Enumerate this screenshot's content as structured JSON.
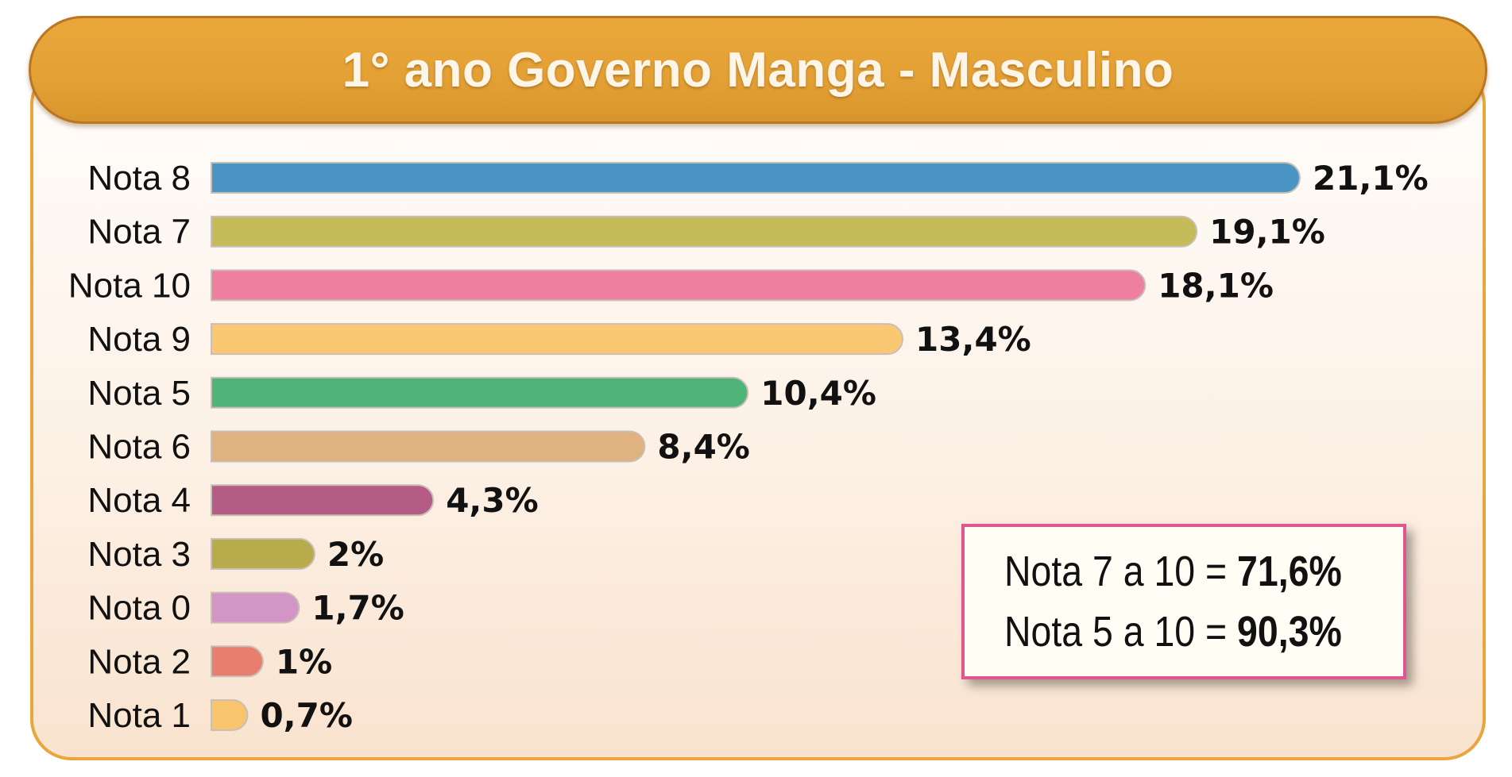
{
  "header": {
    "title": "1° ano Governo Manga - Masculino"
  },
  "colors": {
    "header": "#e3a035",
    "panel_border": "#e8a63c",
    "summary_border": "#e2558f"
  },
  "chart_data": {
    "type": "bar",
    "orientation": "horizontal",
    "title": "1° ano Governo Manga - Masculino",
    "categories": [
      "Nota 8",
      "Nota 7",
      "Nota 10",
      "Nota 9",
      "Nota 5",
      "Nota 6",
      "Nota 4",
      "Nota 3",
      "Nota 0",
      "Nota 2",
      "Nota 1"
    ],
    "values": [
      21.1,
      19.1,
      18.1,
      13.4,
      10.4,
      8.4,
      4.3,
      2,
      1.7,
      1,
      0.7
    ],
    "value_labels": [
      "21,1%",
      "19,1%",
      "18,1%",
      "13,4%",
      "10,4%",
      "8,4%",
      "4,3%",
      "2%",
      "1,7%",
      "1%",
      "0,7%"
    ],
    "bar_colors": [
      "#4a95c3",
      "#c5bb58",
      "#ec809e",
      "#fac872",
      "#4eb478",
      "#dfb280",
      "#b45c86",
      "#b7ab4b",
      "#d395c6",
      "#ea7e6e",
      "#f8c56c"
    ],
    "unit": "%",
    "grid": false,
    "legend": "none"
  },
  "summary": {
    "lines": [
      {
        "label": "Nota 7 a 10 =",
        "value": "71,6%"
      },
      {
        "label": "Nota 5 a 10 =",
        "value": "90,3%"
      }
    ]
  }
}
